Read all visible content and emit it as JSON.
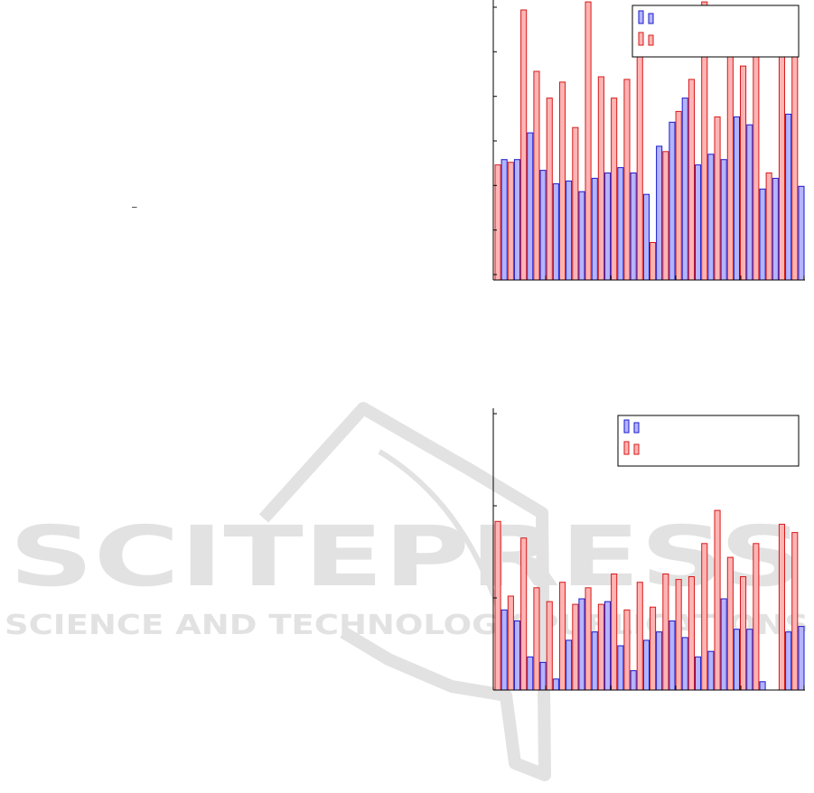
{
  "colors": {
    "blue_fill": "#b4b4ff",
    "blue_stroke": "#1a1acc",
    "red_fill": "#ffb4b4",
    "red_stroke": "#d61a1a",
    "watermark": "#e2e2e2",
    "axis": "#000000"
  },
  "watermark": {
    "line1": "SCITEPRESS",
    "line2": "SCIENCE AND TECHNOLOGY PUBLICATIONS"
  },
  "stray_mark": "–",
  "chart_data": [
    {
      "type": "bar",
      "ylim": [
        0,
        100
      ],
      "legend": "top-right",
      "grid": false,
      "legend_labels": [
        "",
        ""
      ],
      "series": [
        {
          "color": "blue",
          "values": [
            43,
            43,
            53,
            39,
            34,
            35,
            31,
            36,
            38,
            40,
            38,
            30,
            48,
            57,
            66,
            41,
            45,
            43,
            59,
            56,
            32,
            36,
            60,
            33
          ]
        },
        {
          "color": "red",
          "values": [
            41,
            42,
            99,
            76,
            66,
            72,
            55,
            102,
            74,
            66,
            73,
            100,
            12,
            46,
            61,
            73,
            102,
            59,
            98,
            78,
            100,
            38,
            100,
            96
          ]
        }
      ]
    },
    {
      "type": "bar",
      "ylim": [
        0,
        100
      ],
      "legend": "top-right",
      "grid": false,
      "legend_labels": [
        "",
        ""
      ],
      "series": [
        {
          "color": "blue",
          "values": [
            29,
            25,
            12,
            10,
            4,
            18,
            33,
            21,
            32,
            16,
            7,
            18,
            21,
            25,
            19,
            12,
            14,
            33,
            22,
            22,
            3,
            0,
            21,
            23
          ]
        },
        {
          "color": "red",
          "values": [
            61,
            34,
            55,
            37,
            32,
            39,
            31,
            37,
            31,
            42,
            29,
            39,
            30,
            42,
            40,
            41,
            53,
            65,
            48,
            41,
            53,
            0,
            60,
            57
          ]
        }
      ]
    }
  ]
}
